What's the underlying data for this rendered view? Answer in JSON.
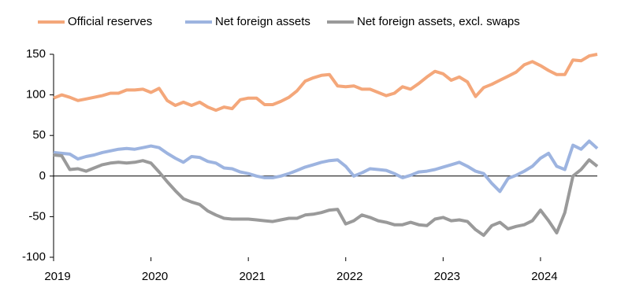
{
  "chart_data": {
    "type": "line",
    "categories": [
      "2019",
      null,
      null,
      null,
      null,
      null,
      null,
      null,
      null,
      null,
      null,
      null,
      "2020",
      null,
      null,
      null,
      null,
      null,
      null,
      null,
      null,
      null,
      null,
      null,
      "2021",
      null,
      null,
      null,
      null,
      null,
      null,
      null,
      null,
      null,
      null,
      null,
      "2022",
      null,
      null,
      null,
      null,
      null,
      null,
      null,
      null,
      null,
      null,
      null,
      "2023",
      null,
      null,
      null,
      null,
      null,
      null,
      null,
      null,
      null,
      null,
      null,
      "2024",
      null,
      null,
      null,
      null,
      null,
      null,
      null
    ],
    "series": [
      {
        "name": "Official reserves",
        "color": "#f4a77a",
        "values": [
          96,
          100,
          97,
          93,
          95,
          97,
          99,
          102,
          102,
          106,
          106,
          107,
          103,
          108,
          93,
          87,
          91,
          87,
          91,
          85,
          81,
          85,
          83,
          94,
          96,
          96,
          88,
          88,
          92,
          97,
          105,
          117,
          121,
          124,
          125,
          111,
          110,
          111,
          107,
          107,
          103,
          99,
          102,
          110,
          107,
          114,
          122,
          129,
          126,
          118,
          122,
          116,
          98,
          109,
          113,
          118,
          123,
          128,
          137,
          141,
          136,
          130,
          125,
          125,
          143,
          142,
          148,
          150
        ]
      },
      {
        "name": "Net foreign assets",
        "color": "#9db4e0",
        "values": [
          29,
          28,
          27,
          21,
          24,
          26,
          29,
          31,
          33,
          34,
          33,
          35,
          37,
          35,
          28,
          22,
          17,
          24,
          23,
          18,
          16,
          10,
          9,
          5,
          3,
          0,
          -2,
          -2,
          0,
          3,
          7,
          11,
          14,
          17,
          19,
          20,
          12,
          0,
          4,
          9,
          8,
          7,
          3,
          -2,
          1,
          5,
          6,
          8,
          11,
          14,
          17,
          12,
          6,
          3,
          -9,
          -19,
          -3,
          1,
          6,
          12,
          22,
          28,
          12,
          8,
          38,
          33,
          43,
          34
        ]
      },
      {
        "name": "Net foreign assets, excl. swaps",
        "color": "#9a9a9a",
        "values": [
          26,
          25,
          8,
          9,
          6,
          10,
          14,
          16,
          17,
          16,
          17,
          19,
          16,
          5,
          -7,
          -18,
          -28,
          -32,
          -35,
          -43,
          -48,
          -52,
          -53,
          -53,
          -53,
          -54,
          -55,
          -56,
          -54,
          -52,
          -52,
          -48,
          -47,
          -45,
          -42,
          -41,
          -59,
          -55,
          -48,
          -51,
          -55,
          -57,
          -60,
          -60,
          -57,
          -60,
          -61,
          -53,
          -51,
          -55,
          -54,
          -56,
          -66,
          -73,
          -61,
          -57,
          -65,
          -62,
          -60,
          -55,
          -42,
          -55,
          -70,
          -45,
          0,
          8,
          20,
          12
        ]
      }
    ],
    "ylim": [
      -100,
      150
    ],
    "yticks": [
      -100,
      -50,
      0,
      50,
      100,
      150
    ],
    "legend": "top"
  }
}
